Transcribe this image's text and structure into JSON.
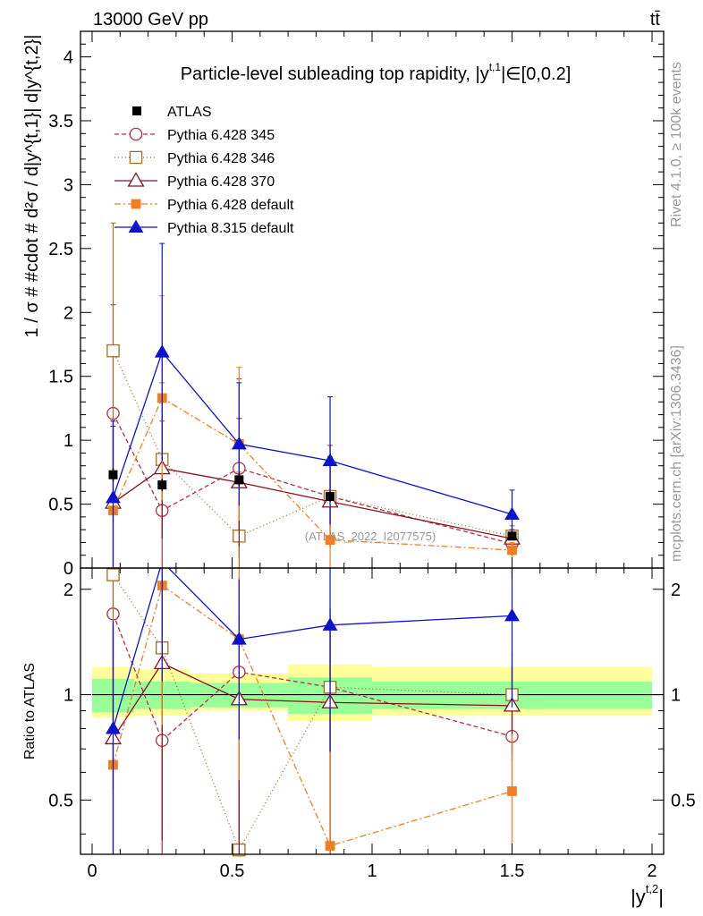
{
  "header": {
    "energy_label": "13000 GeV pp",
    "process_label": "tt̄"
  },
  "side_labels": {
    "rivet": "Rivet 4.1.0, ≥ 100k events",
    "mcplots": "mcplots.cern.ch [arXiv:1306.3436]"
  },
  "chart_data": {
    "type": "line",
    "title": "Particle-level subleading top rapidity, |y",
    "title_sup": "t,1",
    "title_tail": "|∈[0,0.2]",
    "watermark": "(ATLAS_2022_I2077575)",
    "xlabel_main": "|y",
    "xlabel_sup": "t,2",
    "xlabel_tail": "|",
    "ylabel": "1 / σ # #cdot # d²σ / d|y^{t,1}| d|y^{t,2}|",
    "ylabel_ratio": "Ratio to ATLAS",
    "xlim": [
      -0.05,
      2.0
    ],
    "ylim_main": [
      0,
      4.2
    ],
    "ylim_ratio": [
      0.35,
      2.3
    ],
    "x_ticks": [
      {
        "v": 0,
        "label": "0"
      },
      {
        "v": 0.5,
        "label": "0.5"
      },
      {
        "v": 1,
        "label": "1"
      },
      {
        "v": 1.5,
        "label": "1.5"
      },
      {
        "v": 2,
        "label": "2"
      }
    ],
    "y_ticks_main": [
      {
        "v": 0,
        "label": "0"
      },
      {
        "v": 0.5,
        "label": "0.5"
      },
      {
        "v": 1,
        "label": "1"
      },
      {
        "v": 1.5,
        "label": "1.5"
      },
      {
        "v": 2,
        "label": "2"
      },
      {
        "v": 2.5,
        "label": "2.5"
      },
      {
        "v": 3,
        "label": "3"
      },
      {
        "v": 3.5,
        "label": "3.5"
      },
      {
        "v": 4,
        "label": "4"
      }
    ],
    "y_ticks_ratio": [
      {
        "v": 0.5,
        "label": "0.5"
      },
      {
        "v": 1,
        "label": "1"
      },
      {
        "v": 2,
        "label": "2"
      }
    ],
    "bins": [
      [
        0.0,
        0.15
      ],
      [
        0.15,
        0.35
      ],
      [
        0.35,
        0.7
      ],
      [
        0.7,
        1.0
      ],
      [
        1.0,
        2.0
      ]
    ],
    "x": [
      0.075,
      0.25,
      0.525,
      0.85,
      1.5
    ],
    "data": {
      "name": "ATLAS",
      "values": [
        0.73,
        0.65,
        0.69,
        0.56,
        0.25
      ],
      "errors": [
        0.05,
        0.05,
        0.05,
        0.04,
        0.02
      ]
    },
    "band_inner": [
      [
        0.89,
        1.11
      ],
      [
        0.91,
        1.09
      ],
      [
        0.92,
        1.08
      ],
      [
        0.88,
        1.12
      ],
      [
        0.91,
        1.09
      ]
    ],
    "band_outer": [
      [
        0.86,
        1.2
      ],
      [
        0.87,
        1.18
      ],
      [
        0.9,
        1.15
      ],
      [
        0.84,
        1.22
      ],
      [
        0.87,
        1.2
      ]
    ],
    "series": [
      {
        "name": "Pythia 6.428 345",
        "color": "#b03040",
        "dash": "5,3",
        "marker": "circle-open",
        "values": [
          1.21,
          0.45,
          0.78,
          0.56,
          0.19
        ],
        "err": [
          0.85,
          0.7,
          0.7,
          0.4,
          0.06
        ],
        "ratio": [
          1.7,
          0.74,
          1.16,
          1.05,
          0.76
        ]
      },
      {
        "name": "Pythia 6.428 346",
        "color": "#a07020",
        "dash": "1,3",
        "marker": "square-open",
        "values": [
          1.7,
          0.85,
          0.25,
          0.56,
          0.25
        ],
        "err": [
          1.0,
          0.6,
          0.5,
          0.4,
          0.08
        ],
        "ratio": [
          2.2,
          1.36,
          0.36,
          1.05,
          1.0
        ]
      },
      {
        "name": "Pythia 6.428 370",
        "color": "#8a1020",
        "dash": "",
        "marker": "triangle-open",
        "values": [
          0.51,
          0.78,
          0.67,
          0.52,
          0.23
        ],
        "err": [
          0.6,
          0.55,
          0.5,
          0.35,
          0.07
        ],
        "ratio": [
          0.75,
          1.23,
          0.97,
          0.95,
          0.93
        ]
      },
      {
        "name": "Pythia 6.428 default",
        "color": "#f07f20",
        "dash": "7,3,2,3",
        "marker": "square-filled",
        "values": [
          0.45,
          1.33,
          0.97,
          0.22,
          0.14
        ],
        "err": [
          0.7,
          0.8,
          0.6,
          0.35,
          0.06
        ],
        "ratio": [
          0.63,
          2.05,
          1.44,
          0.37,
          0.53
        ]
      },
      {
        "name": "Pythia 8.315 default",
        "color": "#0a12d0",
        "dash": "",
        "marker": "triangle-filled",
        "values": [
          0.55,
          1.69,
          0.97,
          0.84,
          0.42
        ],
        "err": [
          0.6,
          0.85,
          0.48,
          0.5,
          0.19
        ],
        "ratio": [
          0.8,
          2.4,
          1.44,
          1.58,
          1.68
        ]
      }
    ]
  }
}
